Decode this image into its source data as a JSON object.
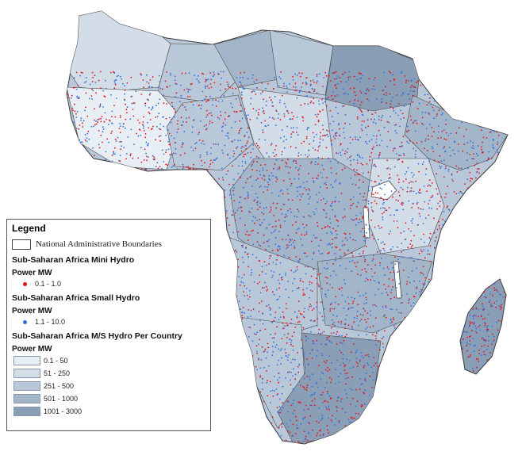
{
  "legend": {
    "title": "Legend",
    "boundaries_label": "National Administrative Boundaries",
    "mini_hydro": {
      "heading": "Sub-Saharan Africa Mini Hydro",
      "unit": "Power MW",
      "range": "0.1 - 1.0",
      "color": "#e8101a"
    },
    "small_hydro": {
      "heading": "Sub-Saharan Africa Small Hydro",
      "unit": "Power MW",
      "range": "1.1 - 10.0",
      "color": "#2f6fe0"
    },
    "per_country": {
      "heading": "Sub-Saharan Africa M/S Hydro Per Country",
      "unit": "Power MW",
      "classes": [
        {
          "label": "0.1 - 50",
          "color": "#e8eff4"
        },
        {
          "label": "51 - 250",
          "color": "#d2dde8"
        },
        {
          "label": "251 - 500",
          "color": "#b9c8d8"
        },
        {
          "label": "501 - 1000",
          "color": "#a3b5c9"
        },
        {
          "label": "1001 - 3000",
          "color": "#8a9fb6"
        }
      ]
    }
  },
  "colors": {
    "border": "#3a3a3a",
    "water": "#ffffff"
  }
}
